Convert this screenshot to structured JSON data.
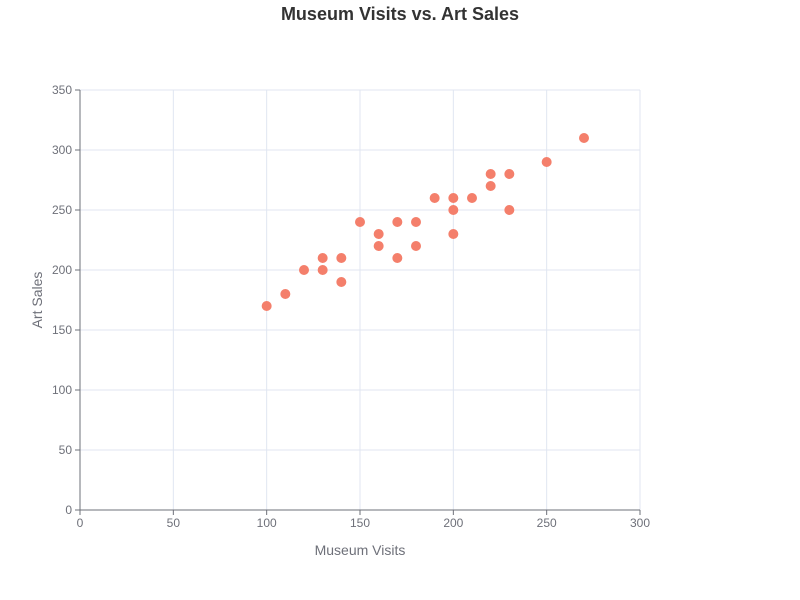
{
  "chart_data": {
    "type": "scatter",
    "title": "Museum Visits vs. Art Sales",
    "xlabel": "Museum Visits",
    "ylabel": "Art Sales",
    "xlim": [
      0,
      300
    ],
    "ylim": [
      0,
      350
    ],
    "x_ticks": [
      0,
      50,
      100,
      150,
      200,
      250,
      300
    ],
    "y_ticks": [
      0,
      50,
      100,
      150,
      200,
      250,
      300,
      350
    ],
    "grid": true,
    "point_color": "#f47f6b",
    "series": [
      {
        "points": [
          {
            "x": 100,
            "y": 170
          },
          {
            "x": 110,
            "y": 180
          },
          {
            "x": 120,
            "y": 200
          },
          {
            "x": 130,
            "y": 210
          },
          {
            "x": 130,
            "y": 200
          },
          {
            "x": 140,
            "y": 210
          },
          {
            "x": 140,
            "y": 190
          },
          {
            "x": 150,
            "y": 240
          },
          {
            "x": 160,
            "y": 230
          },
          {
            "x": 160,
            "y": 220
          },
          {
            "x": 170,
            "y": 240
          },
          {
            "x": 170,
            "y": 210
          },
          {
            "x": 180,
            "y": 240
          },
          {
            "x": 180,
            "y": 220
          },
          {
            "x": 190,
            "y": 260
          },
          {
            "x": 200,
            "y": 260
          },
          {
            "x": 200,
            "y": 250
          },
          {
            "x": 200,
            "y": 230
          },
          {
            "x": 210,
            "y": 260
          },
          {
            "x": 220,
            "y": 280
          },
          {
            "x": 220,
            "y": 270
          },
          {
            "x": 230,
            "y": 280
          },
          {
            "x": 230,
            "y": 250
          },
          {
            "x": 250,
            "y": 290
          },
          {
            "x": 270,
            "y": 310
          }
        ]
      }
    ]
  }
}
